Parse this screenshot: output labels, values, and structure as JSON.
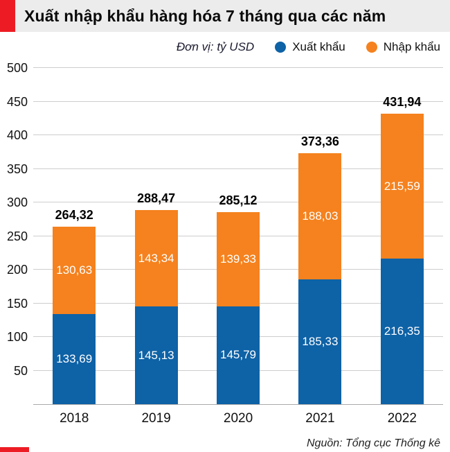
{
  "header": {
    "title": "Xuất nhập khẩu hàng hóa 7 tháng qua các năm"
  },
  "legend": {
    "unit": "Đơn vị: tỷ USD",
    "series": [
      {
        "label": "Xuất khẩu",
        "color": "#0e62a6"
      },
      {
        "label": "Nhập khẩu",
        "color": "#f5821e"
      }
    ]
  },
  "chart_data": {
    "type": "bar",
    "stacked": true,
    "title": "Xuất nhập khẩu hàng hóa 7 tháng qua các năm",
    "ylabel": "tỷ USD",
    "categories": [
      "2018",
      "2019",
      "2020",
      "2021",
      "2022"
    ],
    "series": [
      {
        "name": "Xuất khẩu",
        "color": "#0e62a6",
        "values": [
          133.69,
          145.13,
          145.79,
          185.33,
          216.35
        ],
        "labels": [
          "133,69",
          "145,13",
          "145,79",
          "185,33",
          "216,35"
        ]
      },
      {
        "name": "Nhập khẩu",
        "color": "#f5821e",
        "values": [
          130.63,
          143.34,
          139.33,
          188.03,
          215.59
        ],
        "labels": [
          "130,63",
          "143,34",
          "139,33",
          "188,03",
          "215,59"
        ]
      }
    ],
    "totals": [
      "264,32",
      "288,47",
      "285,12",
      "373,36",
      "431,94"
    ],
    "ylim": [
      0,
      500
    ],
    "ytick_step": 50,
    "grid": true,
    "legend_position": "top-right"
  },
  "footer": {
    "source": "Nguồn: Tổng cục Thống kê"
  },
  "colors": {
    "accent_red": "#ed1c24",
    "export_blue": "#0e62a6",
    "import_orange": "#f5821e",
    "header_bg": "#ececec"
  }
}
